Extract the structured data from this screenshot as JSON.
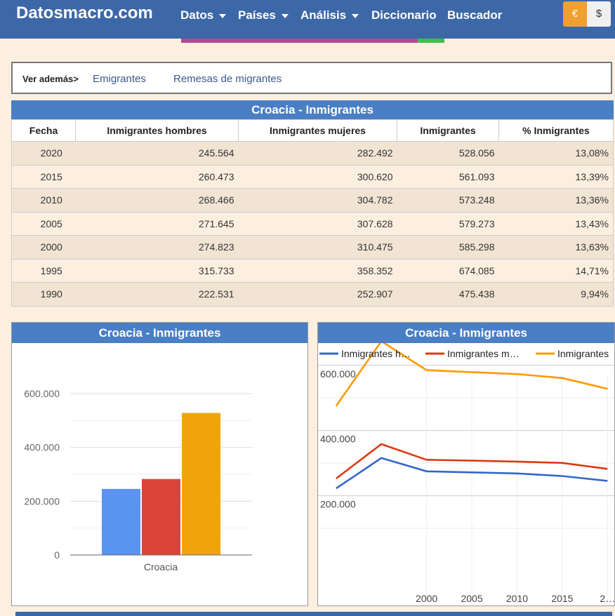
{
  "header": {
    "brand": "Datosmacro.com",
    "nav": [
      "Datos",
      "Países",
      "Análisis",
      "Diccionario",
      "Buscador"
    ],
    "currency_euro": "€",
    "currency_dollar": "$"
  },
  "see_also": {
    "label": "Ver además>",
    "links": [
      "Emigrantes",
      "Remesas de migrantes"
    ]
  },
  "table": {
    "title": "Croacia - Inmigrantes",
    "headers": [
      "Fecha",
      "Inmigrantes hombres",
      "Inmigrantes mujeres",
      "Inmigrantes",
      "% Inmigrantes"
    ],
    "rows": [
      [
        "2020",
        "245.564",
        "282.492",
        "528.056",
        "13,08%"
      ],
      [
        "2015",
        "260.473",
        "300.620",
        "561.093",
        "13,39%"
      ],
      [
        "2010",
        "268.466",
        "304.782",
        "573.248",
        "13,36%"
      ],
      [
        "2005",
        "271.645",
        "307.628",
        "579.273",
        "13,43%"
      ],
      [
        "2000",
        "274.823",
        "310.475",
        "585.298",
        "13,63%"
      ],
      [
        "1995",
        "315.733",
        "358.352",
        "674.085",
        "14,71%"
      ],
      [
        "1990",
        "222.531",
        "252.907",
        "475.438",
        "9,94%"
      ]
    ]
  },
  "chart_data": [
    {
      "type": "bar",
      "title": "Croacia - Inmigrantes",
      "categories": [
        "Croacia"
      ],
      "series": [
        {
          "values": [
            245564
          ],
          "color": "#5b93f0"
        },
        {
          "values": [
            282492
          ],
          "color": "#dc4437"
        },
        {
          "values": [
            528056
          ],
          "color": "#f0a30a"
        }
      ],
      "ylim": [
        0,
        600000
      ],
      "yticks": [
        "0",
        "200.000",
        "400.000",
        "600.000"
      ],
      "grid": true
    },
    {
      "type": "line",
      "title": "Croacia - Inmigrantes",
      "legend": [
        "Inmigrantes h…",
        "Inmigrantes m…",
        "Inmigrantes"
      ],
      "legend_position": "top",
      "x": [
        1990,
        1995,
        2000,
        2005,
        2010,
        2015,
        2020
      ],
      "series": [
        {
          "name": "Inmigrantes hombres",
          "values": [
            222531,
            315733,
            274823,
            271645,
            268466,
            260473,
            245564
          ],
          "color": "#3366cc"
        },
        {
          "name": "Inmigrantes mujeres",
          "values": [
            252907,
            358352,
            310475,
            307628,
            304782,
            300620,
            282492
          ],
          "color": "#dc3912"
        },
        {
          "name": "Inmigrantes",
          "values": [
            475438,
            674085,
            585298,
            579273,
            573248,
            561093,
            528056
          ],
          "color": "#ff9900"
        }
      ],
      "xticks": [
        "2000",
        "2005",
        "2010",
        "2015",
        "2…"
      ],
      "yticks": [
        "200.000",
        "400.000",
        "600.000"
      ],
      "grid": true
    }
  ]
}
